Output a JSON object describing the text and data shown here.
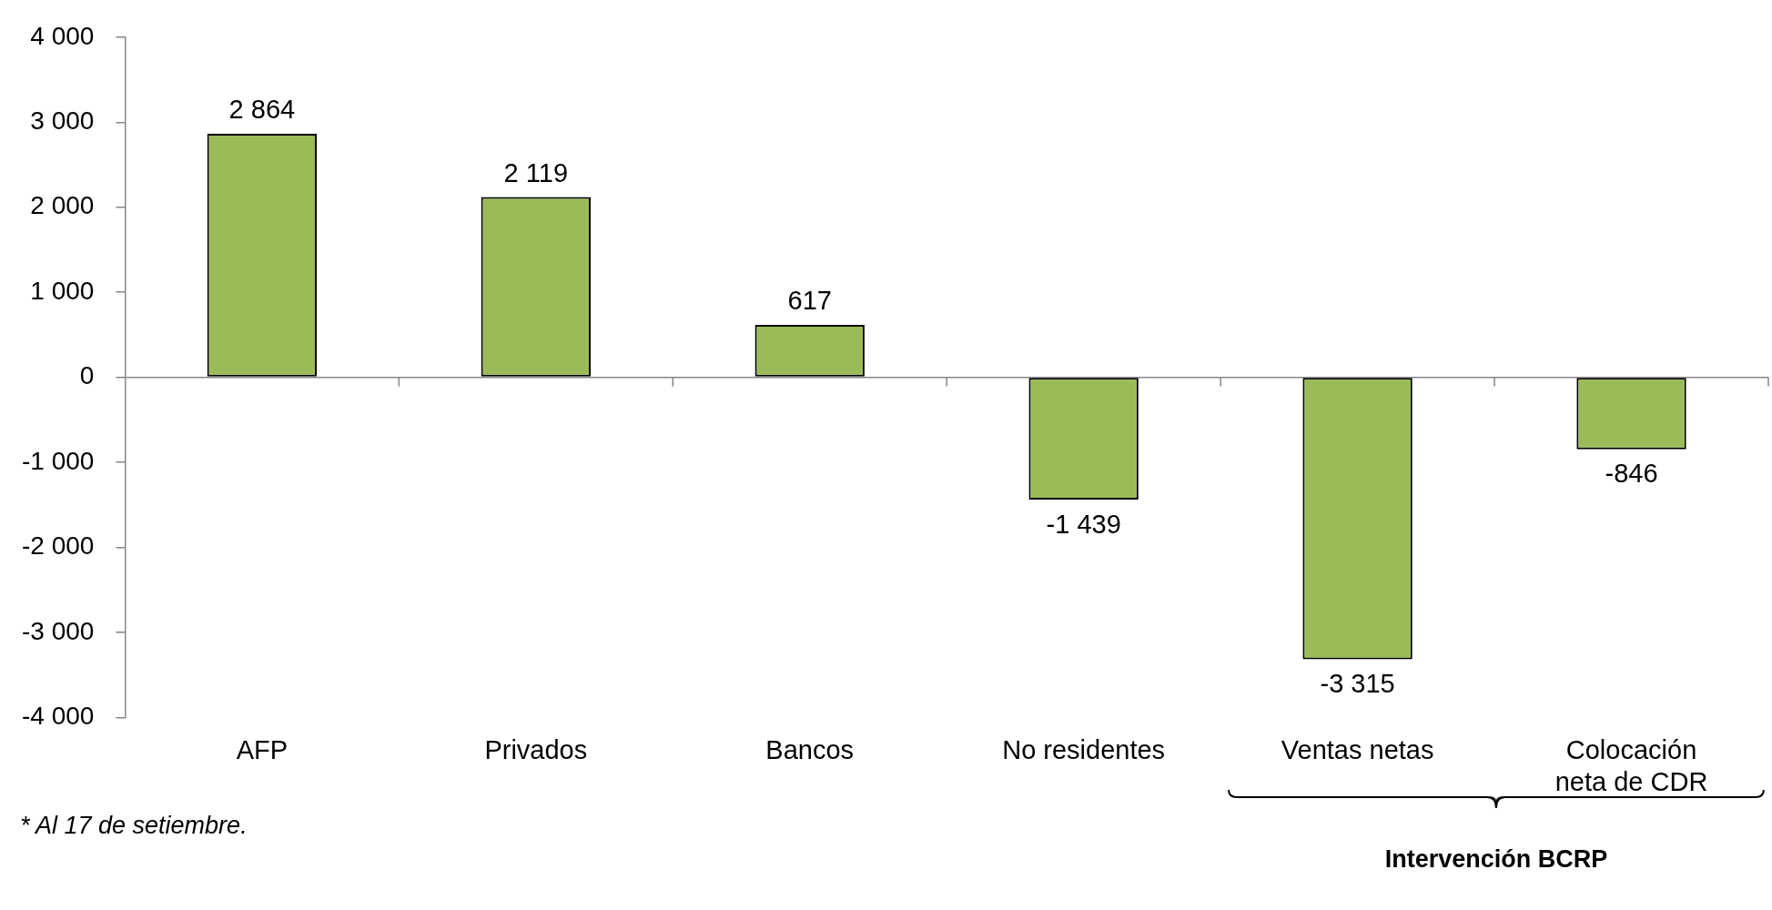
{
  "chart_data": {
    "type": "bar",
    "categories": [
      "AFP",
      "Privados",
      "Bancos",
      "No residentes",
      "Ventas netas",
      "Colocación neta de CDR"
    ],
    "values": [
      2864,
      2119,
      617,
      -1439,
      -3315,
      -846
    ],
    "value_labels": [
      "2 864",
      "2 119",
      "617",
      "-1 439",
      "-3 315",
      "-846"
    ],
    "color": "#9bbb59",
    "ylim": [
      -4000,
      4000
    ],
    "yticks": [
      {
        "value": -4000,
        "label": "-4 000"
      },
      {
        "value": -3000,
        "label": "-3 000"
      },
      {
        "value": -2000,
        "label": "-2 000"
      },
      {
        "value": -1000,
        "label": "-1 000"
      },
      0,
      {
        "value": 1000,
        "label": "1 000"
      },
      {
        "value": 2000,
        "label": "2 000"
      },
      {
        "value": 3000,
        "label": "3 000"
      },
      {
        "value": 4000,
        "label": "4 000"
      }
    ],
    "annotations": [
      "* Al 17 de setiembre.",
      "Intervención BCRP"
    ],
    "legend": false
  }
}
